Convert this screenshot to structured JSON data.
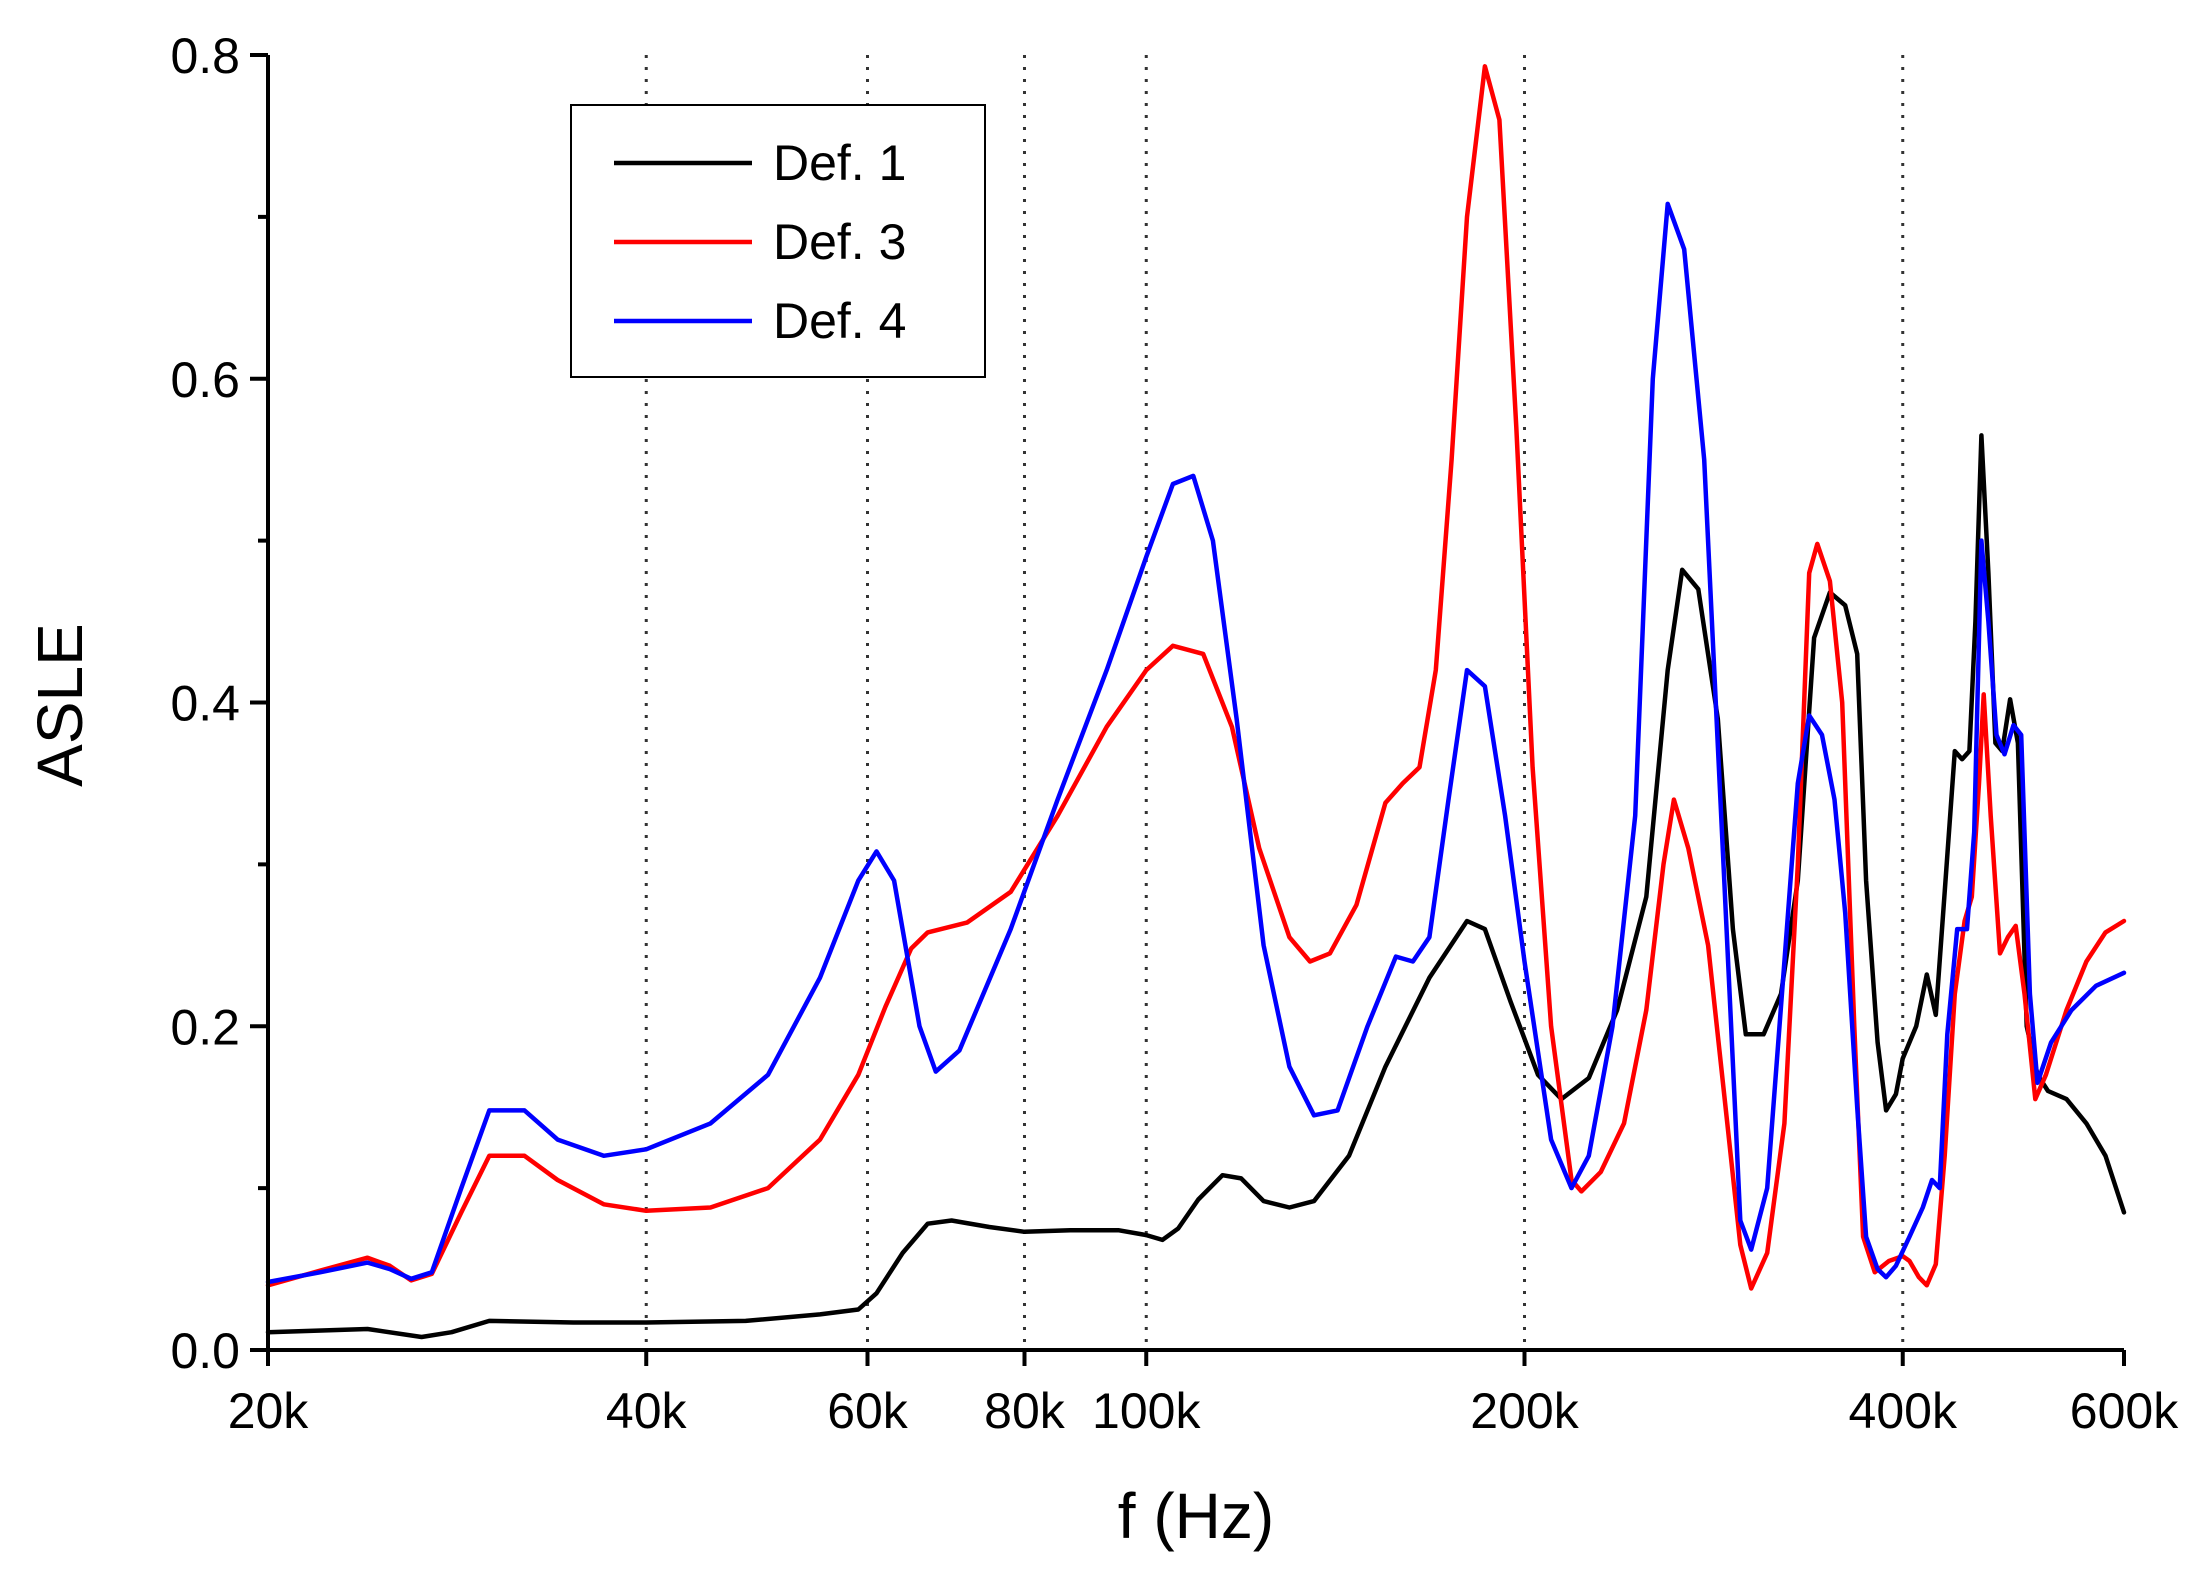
{
  "chart_data": {
    "type": "line",
    "xscale": "log",
    "xlabel": "f (Hz)",
    "ylabel": "ASLE",
    "xlim": [
      20000,
      600000
    ],
    "ylim": [
      0,
      0.8
    ],
    "xticks": [
      {
        "value": 20000,
        "label": "20k"
      },
      {
        "value": 40000,
        "label": "40k"
      },
      {
        "value": 60000,
        "label": "60k"
      },
      {
        "value": 80000,
        "label": "80k"
      },
      {
        "value": 100000,
        "label": "100k"
      },
      {
        "value": 200000,
        "label": "200k"
      },
      {
        "value": 400000,
        "label": "400k"
      },
      {
        "value": 600000,
        "label": "600k"
      }
    ],
    "yticks": [
      {
        "value": 0.0,
        "label": "0.0"
      },
      {
        "value": 0.2,
        "label": "0.2"
      },
      {
        "value": 0.4,
        "label": "0.4"
      },
      {
        "value": 0.6,
        "label": "0.6"
      },
      {
        "value": 0.8,
        "label": "0.8"
      }
    ],
    "vertical_dotted_lines": [
      40000,
      60000,
      80000,
      100000,
      200000,
      400000
    ],
    "legend_position": "top-left",
    "series": [
      {
        "name": "Def. 1",
        "color": "#000000",
        "points": [
          [
            20000,
            0.011
          ],
          [
            24000,
            0.013
          ],
          [
            26500,
            0.008
          ],
          [
            28000,
            0.011
          ],
          [
            30000,
            0.018
          ],
          [
            35000,
            0.017
          ],
          [
            40000,
            0.017
          ],
          [
            48000,
            0.018
          ],
          [
            55000,
            0.022
          ],
          [
            59000,
            0.025
          ],
          [
            61000,
            0.035
          ],
          [
            64000,
            0.06
          ],
          [
            67000,
            0.078
          ],
          [
            70000,
            0.08
          ],
          [
            75000,
            0.076
          ],
          [
            80000,
            0.073
          ],
          [
            87000,
            0.074
          ],
          [
            95000,
            0.074
          ],
          [
            100000,
            0.071
          ],
          [
            103000,
            0.068
          ],
          [
            106000,
            0.075
          ],
          [
            110000,
            0.093
          ],
          [
            115000,
            0.108
          ],
          [
            119000,
            0.106
          ],
          [
            124000,
            0.092
          ],
          [
            130000,
            0.088
          ],
          [
            136000,
            0.092
          ],
          [
            145000,
            0.12
          ],
          [
            155000,
            0.175
          ],
          [
            168000,
            0.23
          ],
          [
            180000,
            0.265
          ],
          [
            186000,
            0.26
          ],
          [
            195000,
            0.215
          ],
          [
            205000,
            0.17
          ],
          [
            214000,
            0.155
          ],
          [
            225000,
            0.168
          ],
          [
            237000,
            0.21
          ],
          [
            250000,
            0.28
          ],
          [
            260000,
            0.42
          ],
          [
            267000,
            0.482
          ],
          [
            275000,
            0.47
          ],
          [
            285000,
            0.39
          ],
          [
            293000,
            0.26
          ],
          [
            300000,
            0.195
          ],
          [
            310000,
            0.195
          ],
          [
            320000,
            0.22
          ],
          [
            330000,
            0.29
          ],
          [
            340000,
            0.44
          ],
          [
            350000,
            0.468
          ],
          [
            360000,
            0.46
          ],
          [
            368000,
            0.43
          ],
          [
            374000,
            0.29
          ],
          [
            382000,
            0.19
          ],
          [
            388000,
            0.148
          ],
          [
            395000,
            0.158
          ],
          [
            400000,
            0.18
          ],
          [
            410000,
            0.2
          ],
          [
            418000,
            0.232
          ],
          [
            425000,
            0.207
          ],
          [
            432000,
            0.283
          ],
          [
            440000,
            0.37
          ],
          [
            446000,
            0.365
          ],
          [
            452000,
            0.37
          ],
          [
            457000,
            0.45
          ],
          [
            462000,
            0.565
          ],
          [
            468000,
            0.48
          ],
          [
            474000,
            0.375
          ],
          [
            480000,
            0.37
          ],
          [
            487000,
            0.402
          ],
          [
            494000,
            0.375
          ],
          [
            502000,
            0.2
          ],
          [
            512000,
            0.17
          ],
          [
            522000,
            0.16
          ],
          [
            540000,
            0.155
          ],
          [
            560000,
            0.14
          ],
          [
            580000,
            0.12
          ],
          [
            600000,
            0.085
          ]
        ]
      },
      {
        "name": "Def. 3",
        "color": "#ff0000",
        "points": [
          [
            20000,
            0.04
          ],
          [
            22000,
            0.049
          ],
          [
            24000,
            0.057
          ],
          [
            25000,
            0.052
          ],
          [
            26000,
            0.043
          ],
          [
            27000,
            0.047
          ],
          [
            28500,
            0.085
          ],
          [
            30000,
            0.12
          ],
          [
            32000,
            0.12
          ],
          [
            34000,
            0.105
          ],
          [
            37000,
            0.09
          ],
          [
            40000,
            0.086
          ],
          [
            45000,
            0.088
          ],
          [
            50000,
            0.1
          ],
          [
            55000,
            0.13
          ],
          [
            59000,
            0.17
          ],
          [
            62000,
            0.212
          ],
          [
            65000,
            0.248
          ],
          [
            67000,
            0.258
          ],
          [
            72000,
            0.264
          ],
          [
            78000,
            0.283
          ],
          [
            85000,
            0.33
          ],
          [
            93000,
            0.385
          ],
          [
            100000,
            0.42
          ],
          [
            105000,
            0.435
          ],
          [
            111000,
            0.43
          ],
          [
            117000,
            0.385
          ],
          [
            123000,
            0.31
          ],
          [
            130000,
            0.255
          ],
          [
            135000,
            0.24
          ],
          [
            140000,
            0.245
          ],
          [
            147000,
            0.275
          ],
          [
            155000,
            0.338
          ],
          [
            160000,
            0.35
          ],
          [
            165000,
            0.36
          ],
          [
            170000,
            0.42
          ],
          [
            175000,
            0.55
          ],
          [
            180000,
            0.7
          ],
          [
            186000,
            0.793
          ],
          [
            191000,
            0.76
          ],
          [
            197000,
            0.57
          ],
          [
            203000,
            0.36
          ],
          [
            210000,
            0.2
          ],
          [
            218000,
            0.105
          ],
          [
            222000,
            0.098
          ],
          [
            230000,
            0.11
          ],
          [
            240000,
            0.14
          ],
          [
            250000,
            0.21
          ],
          [
            258000,
            0.3
          ],
          [
            263000,
            0.34
          ],
          [
            270000,
            0.31
          ],
          [
            280000,
            0.25
          ],
          [
            290000,
            0.14
          ],
          [
            297000,
            0.065
          ],
          [
            303000,
            0.038
          ],
          [
            312000,
            0.06
          ],
          [
            322000,
            0.14
          ],
          [
            330000,
            0.3
          ],
          [
            337000,
            0.48
          ],
          [
            342000,
            0.498
          ],
          [
            350000,
            0.475
          ],
          [
            358000,
            0.4
          ],
          [
            366000,
            0.2
          ],
          [
            372000,
            0.07
          ],
          [
            380000,
            0.048
          ],
          [
            390000,
            0.055
          ],
          [
            400000,
            0.058
          ],
          [
            405000,
            0.055
          ],
          [
            412000,
            0.045
          ],
          [
            418000,
            0.04
          ],
          [
            425000,
            0.053
          ],
          [
            432000,
            0.12
          ],
          [
            440000,
            0.22
          ],
          [
            448000,
            0.265
          ],
          [
            454000,
            0.28
          ],
          [
            460000,
            0.35
          ],
          [
            464000,
            0.405
          ],
          [
            470000,
            0.33
          ],
          [
            478000,
            0.245
          ],
          [
            485000,
            0.255
          ],
          [
            492000,
            0.262
          ],
          [
            500000,
            0.22
          ],
          [
            510000,
            0.155
          ],
          [
            520000,
            0.17
          ],
          [
            540000,
            0.21
          ],
          [
            560000,
            0.24
          ],
          [
            580000,
            0.258
          ],
          [
            600000,
            0.265
          ]
        ]
      },
      {
        "name": "Def. 4",
        "color": "#0000ff",
        "points": [
          [
            20000,
            0.042
          ],
          [
            22000,
            0.048
          ],
          [
            24000,
            0.054
          ],
          [
            25000,
            0.05
          ],
          [
            26000,
            0.044
          ],
          [
            27000,
            0.048
          ],
          [
            28500,
            0.1
          ],
          [
            30000,
            0.148
          ],
          [
            32000,
            0.148
          ],
          [
            34000,
            0.13
          ],
          [
            37000,
            0.12
          ],
          [
            40000,
            0.124
          ],
          [
            45000,
            0.14
          ],
          [
            50000,
            0.17
          ],
          [
            55000,
            0.23
          ],
          [
            59000,
            0.29
          ],
          [
            61000,
            0.308
          ],
          [
            63000,
            0.29
          ],
          [
            66000,
            0.2
          ],
          [
            68000,
            0.172
          ],
          [
            71000,
            0.185
          ],
          [
            78000,
            0.26
          ],
          [
            85000,
            0.34
          ],
          [
            93000,
            0.42
          ],
          [
            100000,
            0.49
          ],
          [
            105000,
            0.535
          ],
          [
            109000,
            0.54
          ],
          [
            113000,
            0.5
          ],
          [
            118000,
            0.39
          ],
          [
            124000,
            0.25
          ],
          [
            130000,
            0.175
          ],
          [
            136000,
            0.145
          ],
          [
            142000,
            0.148
          ],
          [
            150000,
            0.2
          ],
          [
            158000,
            0.243
          ],
          [
            163000,
            0.24
          ],
          [
            168000,
            0.255
          ],
          [
            174000,
            0.34
          ],
          [
            180000,
            0.42
          ],
          [
            186000,
            0.41
          ],
          [
            193000,
            0.33
          ],
          [
            200000,
            0.24
          ],
          [
            210000,
            0.13
          ],
          [
            218000,
            0.1
          ],
          [
            225000,
            0.12
          ],
          [
            235000,
            0.2
          ],
          [
            245000,
            0.33
          ],
          [
            253000,
            0.6
          ],
          [
            260000,
            0.708
          ],
          [
            268000,
            0.68
          ],
          [
            278000,
            0.55
          ],
          [
            288000,
            0.3
          ],
          [
            297000,
            0.08
          ],
          [
            303000,
            0.062
          ],
          [
            312000,
            0.1
          ],
          [
            322000,
            0.24
          ],
          [
            330000,
            0.35
          ],
          [
            337000,
            0.392
          ],
          [
            345000,
            0.38
          ],
          [
            353000,
            0.34
          ],
          [
            360000,
            0.27
          ],
          [
            368000,
            0.15
          ],
          [
            374000,
            0.07
          ],
          [
            382000,
            0.05
          ],
          [
            388000,
            0.045
          ],
          [
            395000,
            0.052
          ],
          [
            405000,
            0.07
          ],
          [
            415000,
            0.088
          ],
          [
            422000,
            0.105
          ],
          [
            428000,
            0.1
          ],
          [
            434000,
            0.195
          ],
          [
            442000,
            0.26
          ],
          [
            450000,
            0.26
          ],
          [
            456000,
            0.32
          ],
          [
            462000,
            0.5
          ],
          [
            468000,
            0.45
          ],
          [
            475000,
            0.38
          ],
          [
            482000,
            0.368
          ],
          [
            490000,
            0.386
          ],
          [
            497000,
            0.38
          ],
          [
            505000,
            0.22
          ],
          [
            512000,
            0.165
          ],
          [
            525000,
            0.19
          ],
          [
            545000,
            0.21
          ],
          [
            570000,
            0.225
          ],
          [
            600000,
            0.233
          ]
        ]
      }
    ]
  }
}
